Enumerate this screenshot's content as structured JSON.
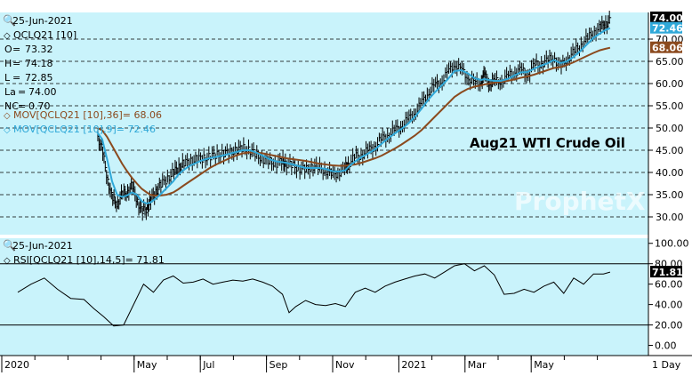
{
  "header": {
    "date": "25-Jun-2021",
    "symbol": "QCLQ21 [10]",
    "ohlc": [
      {
        "label": "O",
        "value": "73.32"
      },
      {
        "label": "H",
        "value": "74.18"
      },
      {
        "label": "L",
        "value": "72.85"
      },
      {
        "label": "La",
        "value": "74.00"
      },
      {
        "label": "NC",
        "value": "0.70"
      }
    ],
    "mov36_label": "MOV[QCLQ21 [10],36]= 68.06",
    "mov9_label": "MOV[QCLQ21 [10],9]= 72.46"
  },
  "chart_title": "Aug21 WTI Crude Oil",
  "watermark": "ProphetX",
  "colors": {
    "background": "#c9f3fb",
    "price": "#000000",
    "mov36": "#8b4a1e",
    "mov9": "#2fa8d8",
    "rsi": "#000000",
    "last_tag": "#000000"
  },
  "price_badges": [
    {
      "label": "74.00",
      "value": 74.0,
      "color": "#000000"
    },
    {
      "label": "72.46",
      "value": 72.46,
      "color": "#2fa8d8"
    },
    {
      "label": "68.06",
      "value": 68.06,
      "color": "#8b4a1e"
    }
  ],
  "price_axis": {
    "min": 26,
    "max": 76,
    "ticks": [
      30,
      35,
      40,
      45,
      50,
      55,
      60,
      65,
      70
    ],
    "tick_labels": [
      "30.00",
      "35.00",
      "40.00",
      "45.00",
      "50.00",
      "55.00",
      "60.00",
      "65.00",
      "70.00"
    ]
  },
  "rsi_panel": {
    "date": "25-Jun-2021",
    "label": "RSI[QCLQ21 [10],14,5]= 71.81",
    "last": 71.81,
    "last_label": "71.81",
    "min": -10,
    "max": 105,
    "ticks": [
      0,
      20,
      40,
      60,
      80,
      100
    ],
    "tick_labels": [
      "0.00",
      "20.00",
      "40.00",
      "60.00",
      "80.00",
      "100.00"
    ],
    "levels": [
      80,
      20
    ]
  },
  "x_axis": {
    "labels": [
      {
        "text": "2020",
        "m": 0
      },
      {
        "text": "May",
        "m": 4
      },
      {
        "text": "Jul",
        "m": 6
      },
      {
        "text": "Sep",
        "m": 8
      },
      {
        "text": "Nov",
        "m": 10
      },
      {
        "text": "2021",
        "m": 12
      },
      {
        "text": "Mar",
        "m": 14
      },
      {
        "text": "May",
        "m": 16
      }
    ],
    "period": "1 Day"
  },
  "chart_data": {
    "type": "line",
    "title": "Aug21 WTI Crude Oil",
    "x_unit": "month index from Jan 2020",
    "x": [
      2.4,
      2.55,
      2.7,
      2.85,
      3.0,
      3.15,
      3.3,
      3.45,
      3.6,
      3.75,
      3.9,
      4.0,
      4.15,
      4.3,
      4.5,
      4.7,
      4.85,
      5.0,
      5.2,
      5.4,
      5.6,
      5.8,
      6.0,
      6.2,
      6.4,
      6.6,
      6.8,
      7.0,
      7.2,
      7.4,
      7.6,
      7.8,
      8.0,
      8.1,
      8.3,
      8.5,
      8.7,
      8.9,
      9.1,
      9.3,
      9.5,
      9.7,
      9.9,
      10.0,
      10.2,
      10.4,
      10.6,
      10.8,
      11.0,
      11.2,
      11.4,
      11.6,
      11.8,
      12.0,
      12.2,
      12.4,
      12.6,
      12.8,
      13.0,
      13.2,
      13.4,
      13.6,
      13.8,
      14.0,
      14.1,
      14.25,
      14.4,
      14.6,
      14.8,
      15.0,
      15.2,
      15.4,
      15.6,
      15.8,
      16.0,
      16.2,
      16.4,
      16.6,
      16.8,
      17.0,
      17.2,
      17.4,
      17.6,
      17.75,
      17.9
    ],
    "series": [
      {
        "name": "QCLQ21 [10]",
        "values": [
          48.5,
          45.0,
          39.0,
          34.0,
          33.0,
          35.0,
          35.5,
          37.0,
          34.0,
          31.0,
          32.0,
          33.5,
          35.5,
          37.0,
          38.5,
          40.0,
          41.0,
          42.0,
          42.5,
          43.0,
          43.2,
          43.5,
          44.0,
          44.2,
          44.5,
          45.0,
          45.5,
          45.0,
          44.0,
          43.0,
          42.5,
          42.0,
          42.5,
          42.0,
          41.5,
          41.0,
          40.5,
          41.5,
          41.0,
          40.5,
          39.5,
          40.0,
          41.0,
          42.0,
          43.5,
          44.0,
          45.0,
          46.0,
          47.5,
          48.5,
          49.5,
          50.5,
          52.0,
          53.5,
          55.5,
          58.0,
          59.5,
          60.5,
          62.5,
          64.5,
          63.0,
          61.5,
          60.0,
          60.5,
          62.0,
          60.0,
          60.5,
          60.5,
          61.5,
          62.5,
          63.0,
          62.0,
          64.0,
          64.5,
          65.0,
          66.0,
          63.5,
          65.5,
          67.0,
          68.5,
          70.0,
          71.5,
          72.5,
          73.5,
          74.0
        ]
      },
      {
        "name": "MOV[QCLQ21 [10],9]",
        "values": [
          49.0,
          47.5,
          43.0,
          38.0,
          35.0,
          34.5,
          34.8,
          35.5,
          35.0,
          33.5,
          33.0,
          33.2,
          34.0,
          35.0,
          36.5,
          38.0,
          39.5,
          40.5,
          41.5,
          42.2,
          42.8,
          43.2,
          43.5,
          43.8,
          44.2,
          44.6,
          45.0,
          45.0,
          44.5,
          43.8,
          43.0,
          42.5,
          42.3,
          42.2,
          41.8,
          41.4,
          41.0,
          41.0,
          41.0,
          40.8,
          40.3,
          40.2,
          40.5,
          41.3,
          42.5,
          43.5,
          44.3,
          45.2,
          46.5,
          47.7,
          48.8,
          49.8,
          51.0,
          52.5,
          54.3,
          56.3,
          58.0,
          59.5,
          61.0,
          62.8,
          63.0,
          62.3,
          61.2,
          60.8,
          61.0,
          60.8,
          60.6,
          60.6,
          61.0,
          61.8,
          62.5,
          62.6,
          63.3,
          64.0,
          64.5,
          65.3,
          64.6,
          65.0,
          66.0,
          67.3,
          68.8,
          70.3,
          71.3,
          72.0,
          72.46
        ]
      },
      {
        "name": "MOV[QCLQ21 [10],36]",
        "values": [
          50.0,
          49.5,
          48.0,
          46.0,
          44.0,
          42.0,
          40.3,
          38.8,
          37.5,
          36.3,
          35.5,
          35.0,
          34.8,
          34.8,
          35.0,
          35.5,
          36.2,
          37.0,
          38.0,
          39.0,
          40.0,
          41.0,
          41.8,
          42.5,
          43.2,
          43.8,
          44.3,
          44.5,
          44.5,
          44.3,
          44.0,
          43.7,
          43.4,
          43.2,
          43.0,
          42.8,
          42.6,
          42.3,
          42.0,
          41.8,
          41.6,
          41.5,
          41.5,
          41.6,
          41.8,
          42.2,
          42.7,
          43.2,
          43.8,
          44.6,
          45.4,
          46.3,
          47.3,
          48.3,
          49.5,
          51.0,
          52.5,
          54.0,
          55.5,
          57.0,
          58.0,
          58.8,
          59.3,
          59.6,
          59.8,
          60.0,
          60.2,
          60.4,
          60.6,
          60.9,
          61.3,
          61.6,
          62.0,
          62.5,
          63.0,
          63.5,
          63.7,
          64.2,
          64.8,
          65.5,
          66.2,
          66.9,
          67.5,
          67.8,
          68.06
        ]
      }
    ],
    "rsi": {
      "name": "RSI[QCLQ21 [10],14,5]",
      "x": [
        0.0,
        0.4,
        0.8,
        1.2,
        1.6,
        2.0,
        2.3,
        2.6,
        2.9,
        3.2,
        3.5,
        3.8,
        4.1,
        4.4,
        4.7,
        5.0,
        5.3,
        5.6,
        5.9,
        6.2,
        6.5,
        6.8,
        7.1,
        7.4,
        7.7,
        8.0,
        8.2,
        8.4,
        8.7,
        9.0,
        9.3,
        9.6,
        9.9,
        10.2,
        10.5,
        10.8,
        11.1,
        11.4,
        11.7,
        12.0,
        12.3,
        12.6,
        12.9,
        13.2,
        13.5,
        13.8,
        14.1,
        14.4,
        14.7,
        15.0,
        15.3,
        15.6,
        15.9,
        16.2,
        16.5,
        16.8,
        17.1,
        17.4,
        17.7,
        17.9
      ],
      "values": [
        52,
        60,
        66,
        55,
        46,
        45,
        36,
        28,
        19,
        20,
        40,
        60,
        52,
        64,
        68,
        61,
        62,
        65,
        60,
        62,
        64,
        63,
        65,
        62,
        58,
        50,
        32,
        38,
        44,
        40,
        39,
        41,
        38,
        52,
        56,
        52,
        58,
        62,
        65,
        68,
        70,
        66,
        72,
        78,
        80,
        73,
        78,
        69,
        50,
        51,
        55,
        52,
        58,
        62,
        51,
        66,
        60,
        70,
        70,
        71.81
      ]
    }
  }
}
